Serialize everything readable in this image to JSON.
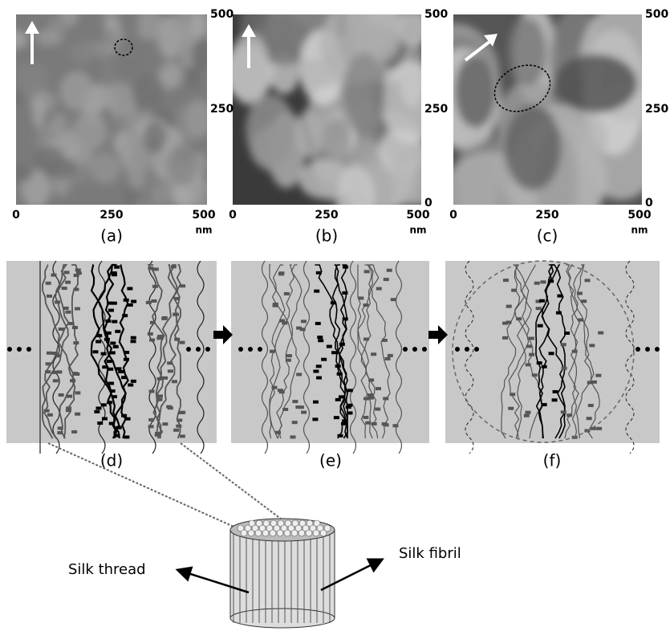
{
  "afm_panels": [
    {
      "label": "(a)",
      "x_ticks": [
        "0",
        "250",
        "500"
      ],
      "x_unit": "nm",
      "y_ticks": [
        "500",
        "250"
      ]
    },
    {
      "label": "(b)",
      "x_ticks": [
        "0",
        "250",
        "500"
      ],
      "x_unit": "nm",
      "y_ticks": [
        "500",
        "250",
        "0"
      ]
    },
    {
      "label": "(c)",
      "x_ticks": [
        "0",
        "250",
        "500"
      ],
      "x_unit": "nm",
      "y_ticks": [
        "500",
        "250",
        "0"
      ]
    }
  ],
  "schematic_panels": [
    {
      "label": "(d)"
    },
    {
      "label": "(e)"
    },
    {
      "label": "(f)"
    }
  ],
  "cylinder": {
    "left_label": "Silk thread",
    "right_label": "Silk fibril"
  }
}
